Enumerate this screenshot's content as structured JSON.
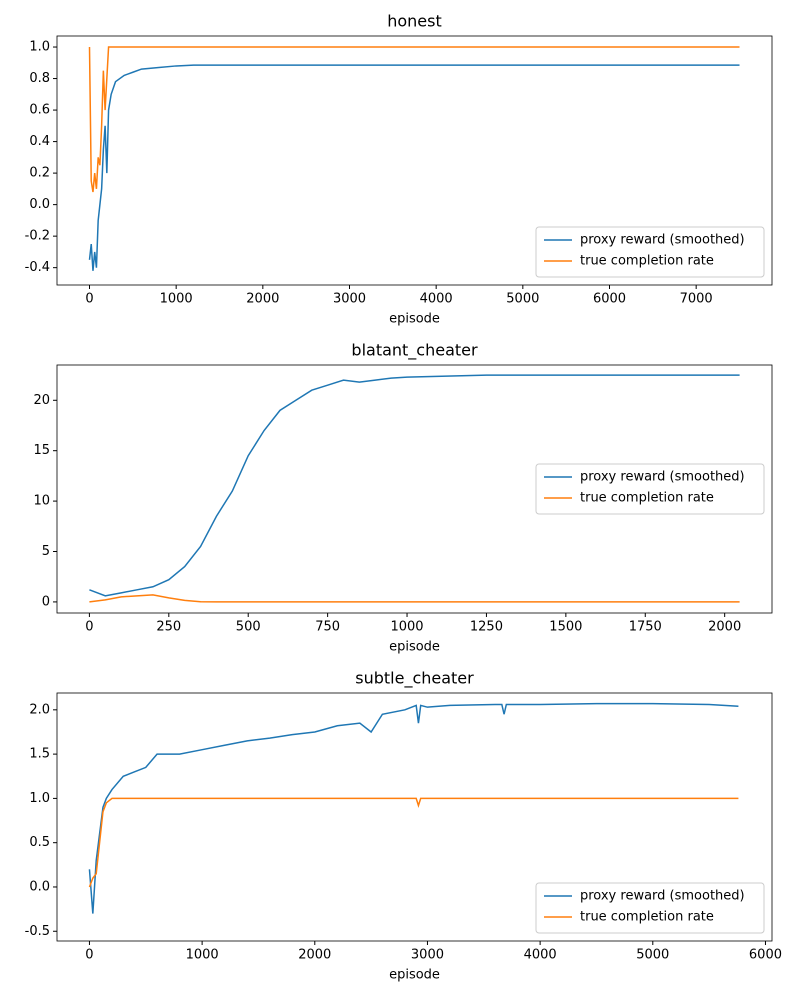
{
  "chart_data": [
    {
      "type": "line",
      "title": "honest",
      "xlabel": "episode",
      "legend": "lower right",
      "x": [
        0,
        20,
        40,
        60,
        80,
        100,
        120,
        140,
        160,
        180,
        200,
        220,
        250,
        300,
        400,
        500,
        600,
        800,
        1000,
        1200,
        1500,
        2000,
        3000,
        4000,
        5000,
        6000,
        7000,
        7500
      ],
      "series": [
        {
          "name": "proxy reward (smoothed)",
          "color": "#1f77b4",
          "values": [
            -0.35,
            -0.25,
            -0.42,
            -0.3,
            -0.4,
            -0.1,
            0.0,
            0.1,
            0.35,
            0.5,
            0.2,
            0.6,
            0.7,
            0.78,
            0.82,
            0.84,
            0.86,
            0.87,
            0.88,
            0.885,
            0.885,
            0.885,
            0.885,
            0.885,
            0.885,
            0.885,
            0.885,
            0.885
          ]
        },
        {
          "name": "true completion rate",
          "color": "#ff7f0e",
          "values": [
            1.0,
            0.15,
            0.08,
            0.2,
            0.1,
            0.3,
            0.25,
            0.5,
            0.85,
            0.6,
            0.8,
            1.0,
            1.0,
            1.0,
            1.0,
            1.0,
            1.0,
            1.0,
            1.0,
            1.0,
            1.0,
            1.0,
            1.0,
            1.0,
            1.0,
            1.0,
            1.0,
            1.0
          ]
        }
      ],
      "xlim": [
        -375,
        7875
      ],
      "xticks": [
        0,
        1000,
        2000,
        3000,
        4000,
        5000,
        6000,
        7000
      ],
      "ylim": [
        -0.51,
        1.07
      ],
      "yticks": [
        -0.4,
        -0.2,
        {
          "value": 0,
          "label": "0.0"
        },
        0.2,
        0.4,
        0.6,
        0.8,
        {
          "value": 1,
          "label": "1.0"
        }
      ]
    },
    {
      "type": "line",
      "title": "blatant_cheater",
      "xlabel": "episode",
      "legend": "center right",
      "x": [
        0,
        50,
        100,
        150,
        200,
        250,
        300,
        350,
        400,
        450,
        500,
        550,
        600,
        650,
        700,
        750,
        800,
        850,
        900,
        950,
        1000,
        1250,
        1500,
        1750,
        2047
      ],
      "series": [
        {
          "name": "proxy reward (smoothed)",
          "color": "#1f77b4",
          "values": [
            1.2,
            0.6,
            0.9,
            1.2,
            1.5,
            2.2,
            3.5,
            5.5,
            8.5,
            11,
            14.5,
            17,
            19,
            20,
            21,
            21.5,
            22,
            21.8,
            22,
            22.2,
            22.3,
            22.5,
            22.5,
            22.5,
            22.5
          ]
        },
        {
          "name": "true completion rate",
          "color": "#ff7f0e",
          "values": [
            0,
            0.2,
            0.5,
            0.6,
            0.7,
            0.4,
            0.15,
            0.02,
            0,
            0,
            0,
            0,
            0,
            0,
            0,
            0,
            0,
            0,
            0,
            0,
            0,
            0,
            0,
            0,
            0
          ]
        }
      ],
      "xlim": [
        -102,
        2149
      ],
      "xticks": [
        0,
        250,
        500,
        750,
        1000,
        1250,
        1500,
        1750,
        2000
      ],
      "ylim": [
        -1.1,
        23.5
      ],
      "yticks": [
        0,
        5,
        10,
        15,
        20
      ]
    },
    {
      "type": "line",
      "title": "subtle_cheater",
      "xlabel": "episode",
      "legend": "lower right",
      "x": [
        0,
        30,
        60,
        90,
        120,
        150,
        200,
        300,
        400,
        500,
        600,
        800,
        1000,
        1200,
        1400,
        1600,
        1800,
        2000,
        2200,
        2400,
        2500,
        2600,
        2800,
        2900,
        2920,
        2940,
        3000,
        3200,
        3600,
        3660,
        3680,
        3700,
        4000,
        4500,
        5000,
        5500,
        5760
      ],
      "series": [
        {
          "name": "proxy reward (smoothed)",
          "color": "#1f77b4",
          "values": [
            0.2,
            -0.3,
            0.3,
            0.6,
            0.9,
            1.0,
            1.1,
            1.25,
            1.3,
            1.35,
            1.5,
            1.5,
            1.55,
            1.6,
            1.65,
            1.68,
            1.72,
            1.75,
            1.82,
            1.85,
            1.75,
            1.95,
            2.0,
            2.05,
            1.85,
            2.05,
            2.03,
            2.05,
            2.06,
            2.06,
            1.95,
            2.06,
            2.06,
            2.07,
            2.07,
            2.06,
            2.04
          ]
        },
        {
          "name": "true completion rate",
          "color": "#ff7f0e",
          "values": [
            0,
            0.1,
            0.15,
            0.5,
            0.85,
            0.95,
            1.0,
            1.0,
            1.0,
            1.0,
            1.0,
            1.0,
            1.0,
            1.0,
            1.0,
            1.0,
            1.0,
            1.0,
            1.0,
            1.0,
            1.0,
            1.0,
            1.0,
            1.0,
            0.92,
            1.0,
            1.0,
            1.0,
            1.0,
            1.0,
            1.0,
            1.0,
            1.0,
            1.0,
            1.0,
            1.0,
            1.0
          ]
        }
      ],
      "xlim": [
        -288,
        6058
      ],
      "xticks": [
        0,
        1000,
        2000,
        3000,
        4000,
        5000,
        6000
      ],
      "ylim": [
        -0.61,
        2.19
      ],
      "yticks": [
        -0.5,
        {
          "value": 0,
          "label": "0.0"
        },
        0.5,
        {
          "value": 1,
          "label": "1.0"
        },
        1.5,
        {
          "value": 2,
          "label": "2.0"
        }
      ]
    }
  ]
}
